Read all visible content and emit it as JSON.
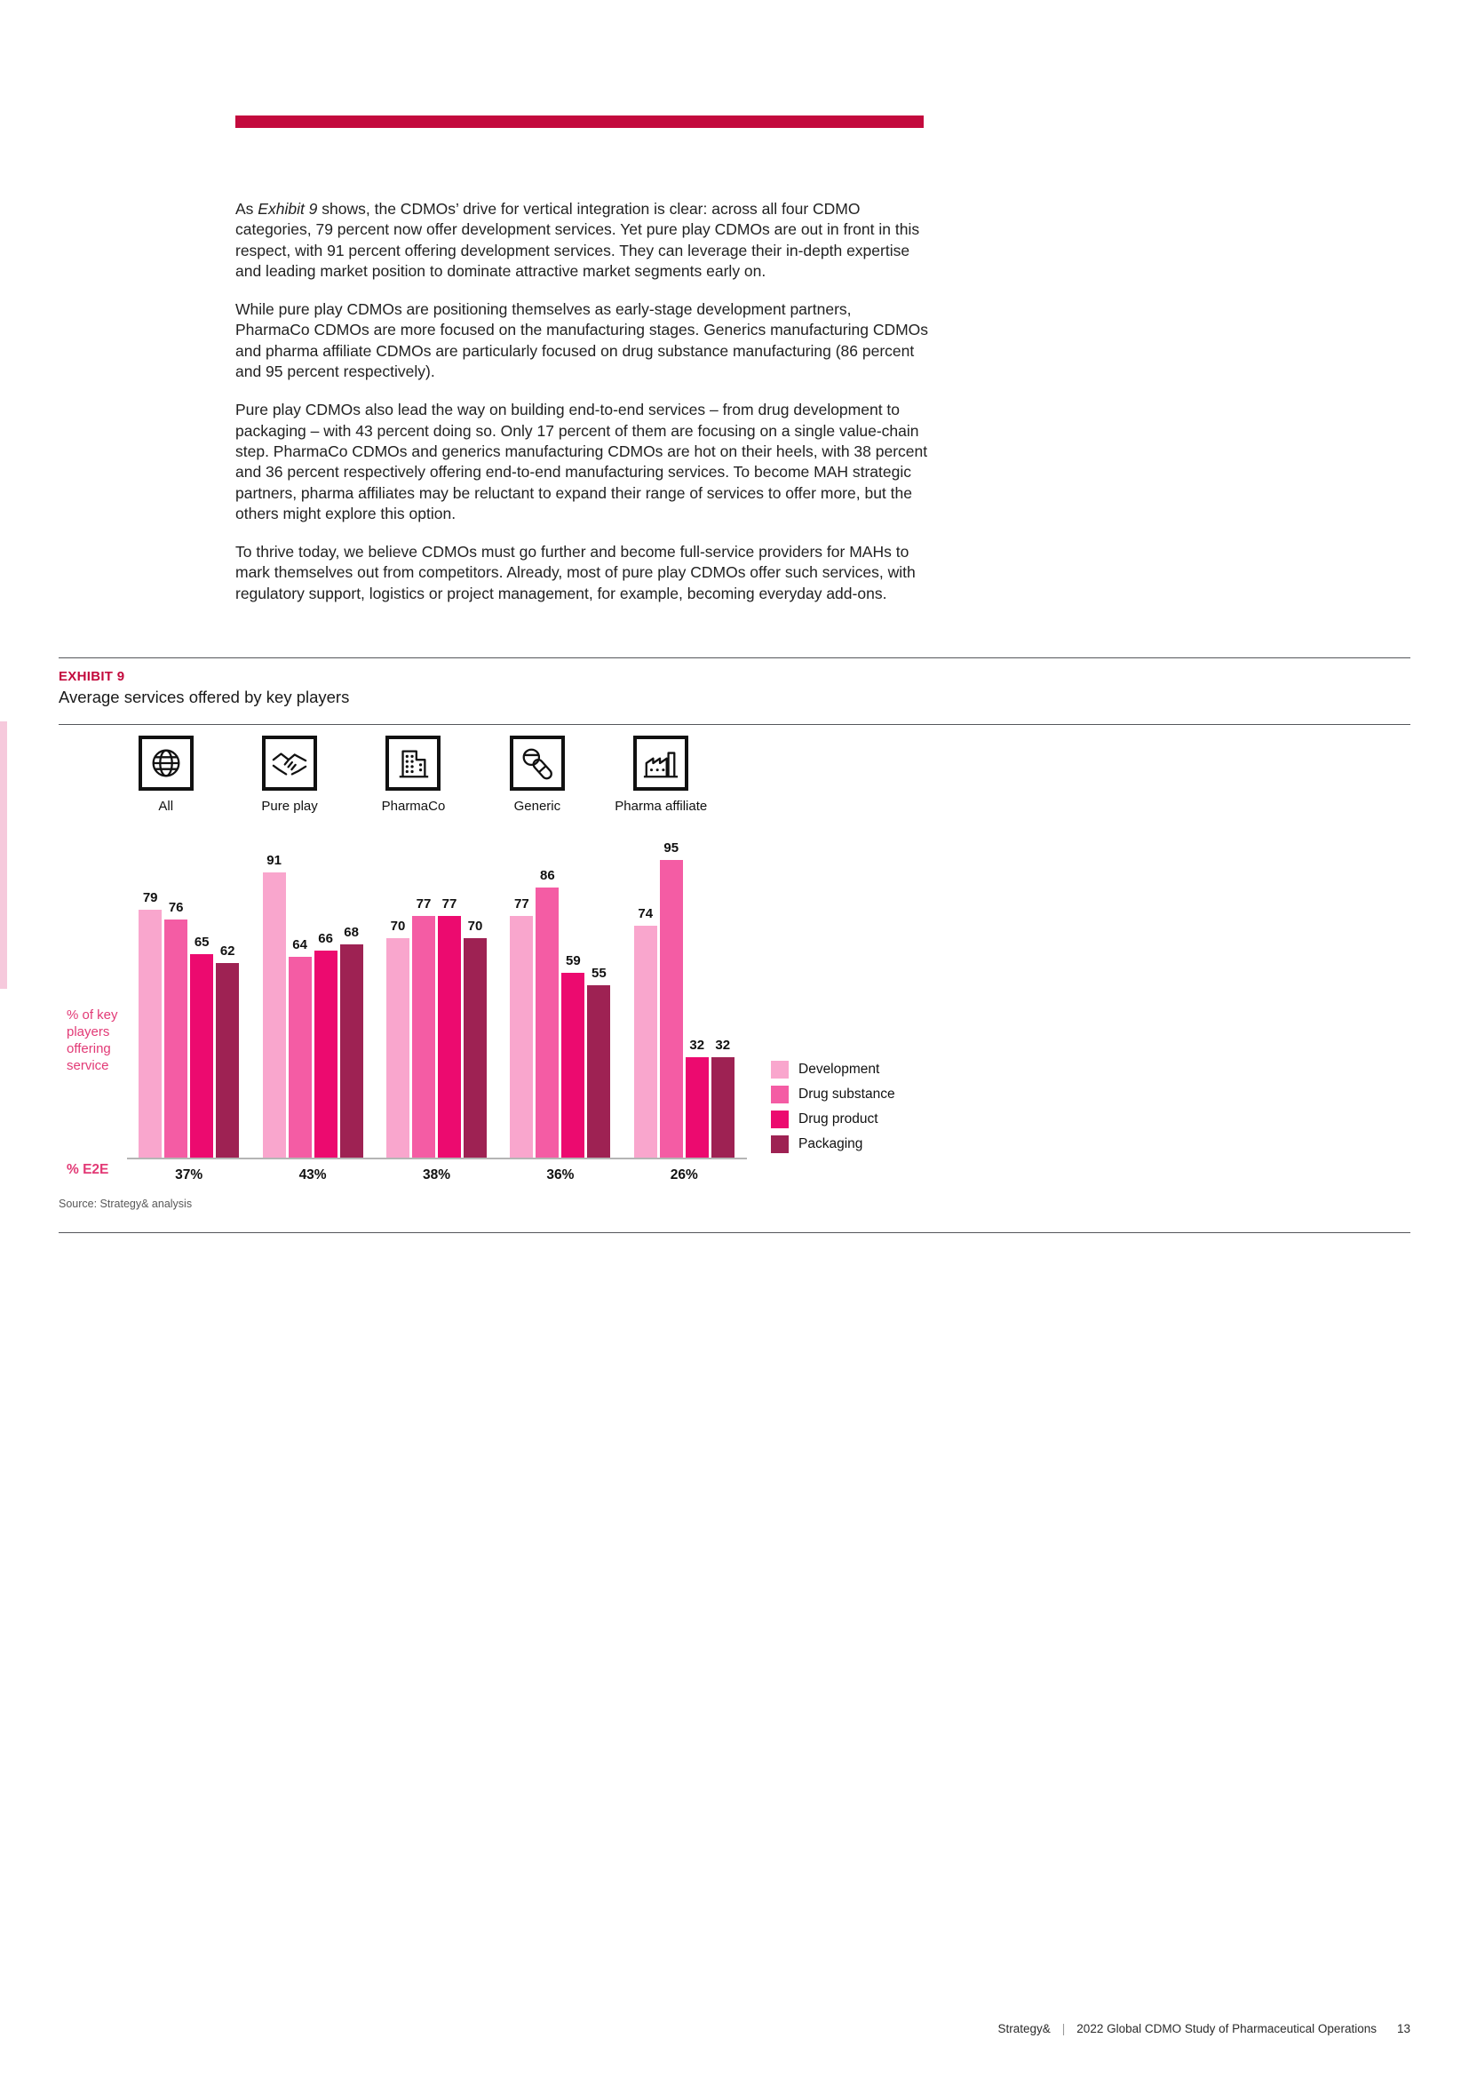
{
  "page": {
    "accent_color": "#c30a3d",
    "footer": {
      "brand": "Strategy&",
      "separator": "|",
      "title": "2022 Global CDMO Study of Pharmaceutical Operations",
      "page_number": "13"
    }
  },
  "intro": {
    "p1_pre": "As ",
    "p1_italic": "Exhibit 9",
    "p1_rest": " shows, the CDMOs’ drive for vertical integration is clear: across all four CDMO categories, 79 percent now offer development services. Yet pure play CDMOs are out in front in this respect, with 91 percent offering development services. They can leverage their in-depth expertise and leading market position to dominate attractive market segments early on.",
    "p2": "While pure play CDMOs are positioning themselves as early-stage development partners, PharmaCo CDMOs are more focused on the manufacturing stages. Generics manufacturing CDMOs and pharma affiliate CDMOs are particularly focused on drug substance manufacturing (86 percent and 95 percent respectively).",
    "p3": "Pure play CDMOs also lead the way on building end-to-end services – from drug development to packaging – with 43 percent doing so. Only 17 percent of them are focusing on a single value-chain step. PharmaCo CDMOs and generics manufacturing CDMOs are hot on their heels, with 38 percent and 36 percent respectively offering end-to-end manufacturing services. To become MAH strategic partners, pharma affiliates may be reluctant to expand their range of services to offer more, but the others might explore this option.",
    "p4": "To thrive today, we believe CDMOs must go further and become full-service providers for MAHs to mark themselves out from competitors. Already, most of pure play CDMOs offer such services, with regulatory support, logistics or project management, for example, becoming everyday add-ons."
  },
  "exhibit": {
    "label": "EXHIBIT 9",
    "title": "Average services offered by key players",
    "source": "Source: Strategy& analysis"
  },
  "chart_data": {
    "type": "bar",
    "title": "Average services offered by key players",
    "categories": [
      "All",
      "Pure play",
      "PharmaCo",
      "Generic",
      "Pharma affiliate"
    ],
    "category_icons": [
      "globe-icon",
      "handshake-icon",
      "building-icon",
      "pills-icon",
      "factory-icon"
    ],
    "series": [
      {
        "name": "Development",
        "color": "#f9a6cd",
        "values": [
          79,
          91,
          70,
          77,
          74
        ]
      },
      {
        "name": "Drug substance",
        "color": "#f45ca4",
        "values": [
          76,
          64,
          77,
          86,
          95
        ]
      },
      {
        "name": "Drug product",
        "color": "#ec0a6f",
        "values": [
          65,
          66,
          77,
          59,
          32
        ]
      },
      {
        "name": "Packaging",
        "color": "#9e2253",
        "values": [
          62,
          68,
          70,
          55,
          32
        ]
      }
    ],
    "ylabel": "% of key players offering service",
    "xlabel": "",
    "ylim": [
      0,
      100
    ],
    "grid": false,
    "value_labels": true,
    "legend_position": "right",
    "e2e_label": "% E2E",
    "e2e_values": [
      "37%",
      "43%",
      "38%",
      "36%",
      "26%"
    ]
  }
}
